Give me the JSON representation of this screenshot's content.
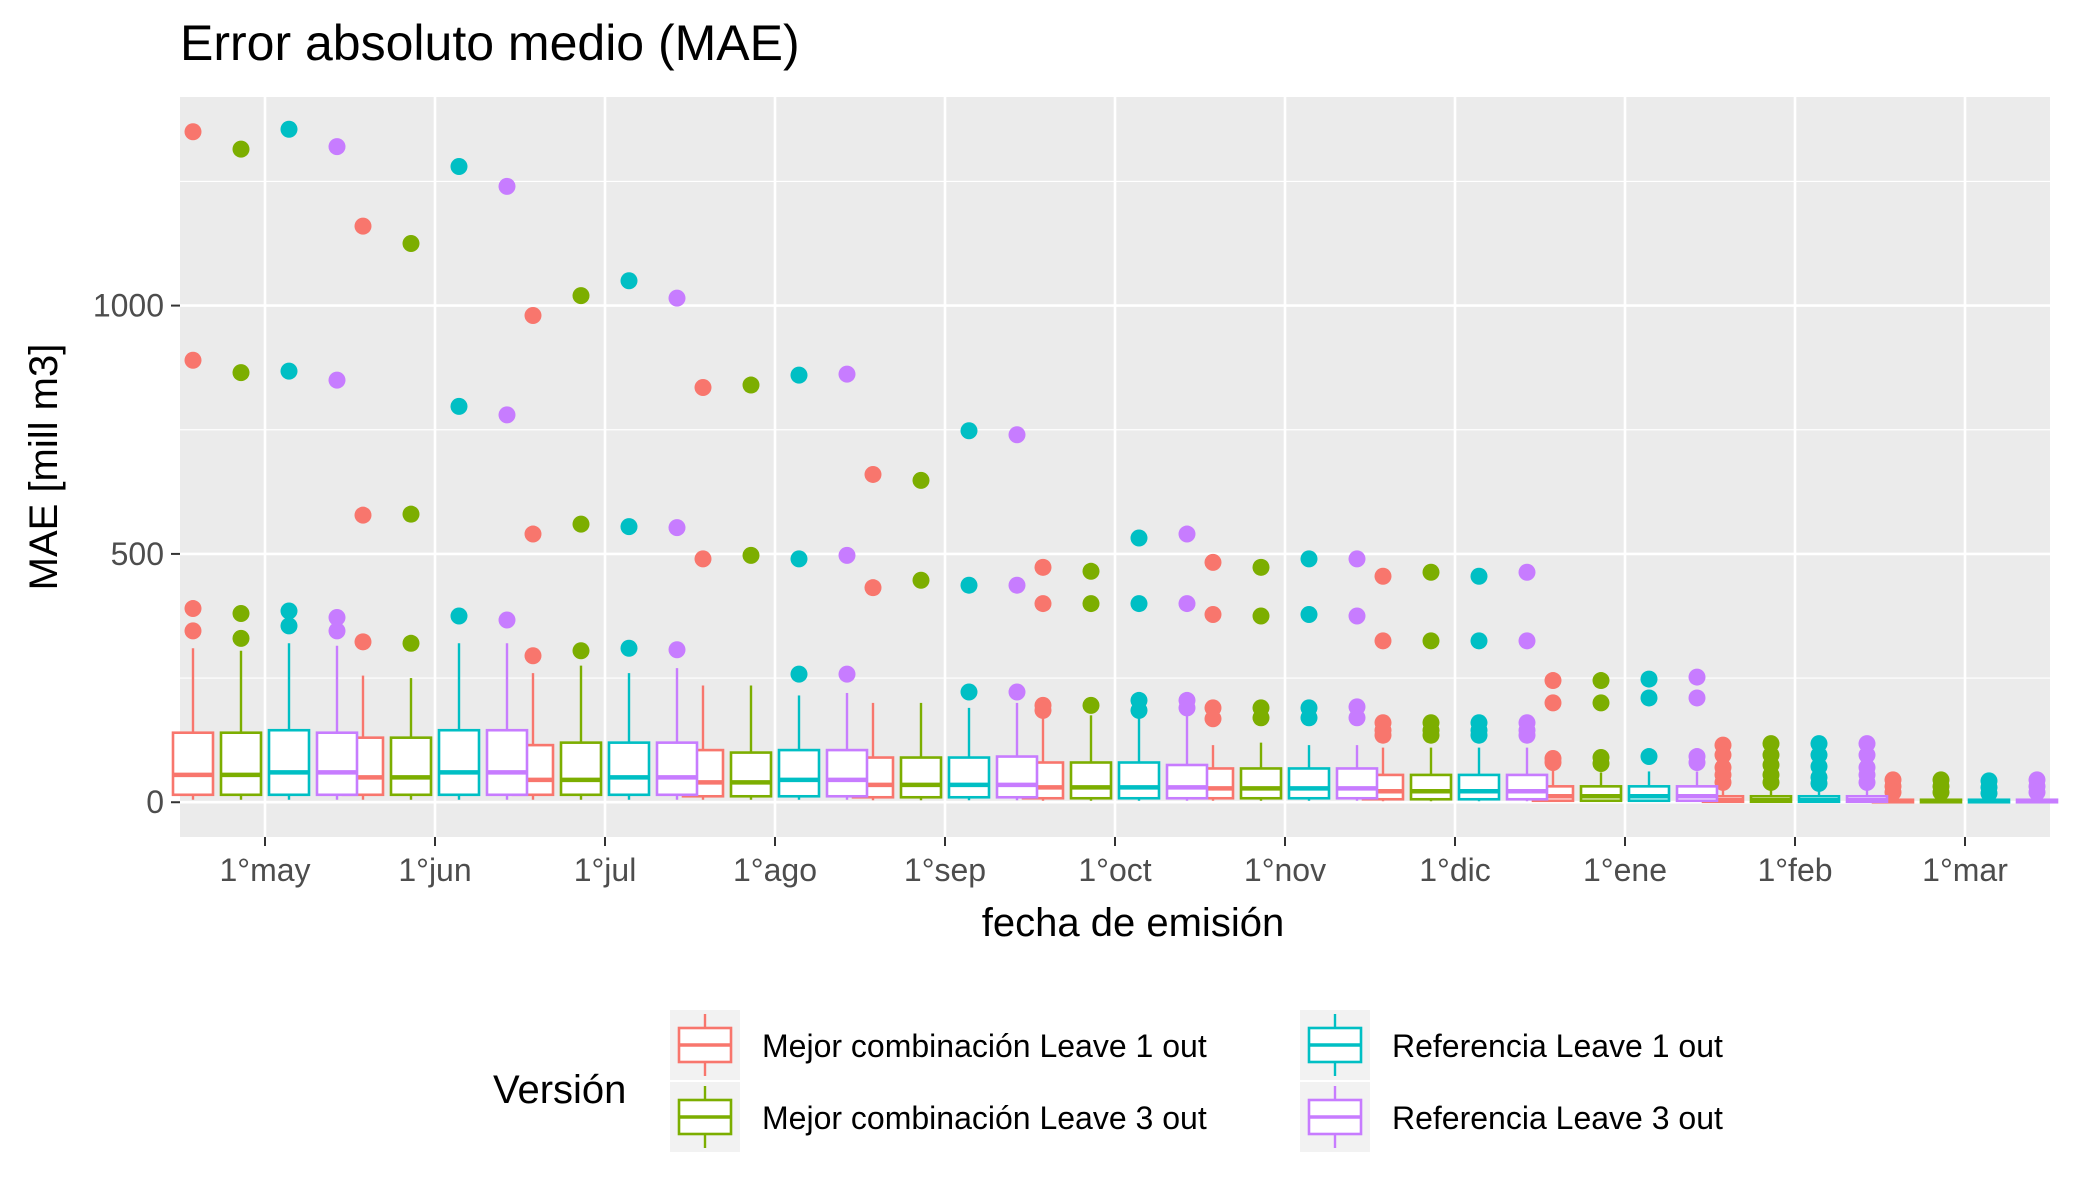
{
  "chart_data": {
    "type": "box",
    "title": "Error absoluto medio (MAE)",
    "xlabel": "fecha de emisión",
    "ylabel": "MAE [mill m3]",
    "ylim": [
      -70,
      1420
    ],
    "yticks": [
      0,
      500,
      1000
    ],
    "grid": true,
    "legend_position": "bottom",
    "legend_title": "Versión",
    "categories": [
      "1°may",
      "1°jun",
      "1°jul",
      "1°ago",
      "1°sep",
      "1°oct",
      "1°nov",
      "1°dic",
      "1°ene",
      "1°feb",
      "1°mar"
    ],
    "series": [
      {
        "name": "Mejor combinación Leave 1 out",
        "color": "#F8766D",
        "boxes": [
          {
            "lo": 5,
            "q1": 15,
            "med": 55,
            "q3": 140,
            "hi": 310,
            "outliers": [
              1350,
              890,
              390,
              345
            ]
          },
          {
            "lo": 5,
            "q1": 15,
            "med": 50,
            "q3": 130,
            "hi": 255,
            "outliers": [
              1160,
              578,
              323
            ]
          },
          {
            "lo": 5,
            "q1": 15,
            "med": 45,
            "q3": 115,
            "hi": 260,
            "outliers": [
              980,
              540,
              295
            ]
          },
          {
            "lo": 5,
            "q1": 12,
            "med": 40,
            "q3": 105,
            "hi": 235,
            "outliers": [
              835,
              490
            ]
          },
          {
            "lo": 4,
            "q1": 10,
            "med": 35,
            "q3": 90,
            "hi": 200,
            "outliers": [
              660,
              432
            ]
          },
          {
            "lo": 3,
            "q1": 8,
            "med": 30,
            "q3": 80,
            "hi": 175,
            "outliers": [
              473,
              400,
              195,
              185
            ]
          },
          {
            "lo": 3,
            "q1": 8,
            "med": 28,
            "q3": 68,
            "hi": 115,
            "outliers": [
              483,
              378,
              190,
              168
            ]
          },
          {
            "lo": 2,
            "q1": 6,
            "med": 22,
            "q3": 55,
            "hi": 110,
            "outliers": [
              455,
              325,
              160,
              145,
              135
            ]
          },
          {
            "lo": 1,
            "q1": 3,
            "med": 12,
            "q3": 32,
            "hi": 65,
            "outliers": [
              245,
              200,
              88,
              80
            ]
          },
          {
            "lo": 0,
            "q1": 1,
            "med": 4,
            "q3": 12,
            "hi": 25,
            "outliers": [
              115,
              95,
              70,
              55,
              40
            ]
          },
          {
            "lo": 0,
            "q1": 0,
            "med": 2,
            "q3": 5,
            "hi": 10,
            "outliers": [
              45,
              32,
              20
            ]
          }
        ]
      },
      {
        "name": "Mejor combinación Leave 3 out",
        "color": "#7CAE00",
        "boxes": [
          {
            "lo": 5,
            "q1": 15,
            "med": 55,
            "q3": 140,
            "hi": 305,
            "outliers": [
              1315,
              865,
              380,
              330
            ]
          },
          {
            "lo": 5,
            "q1": 15,
            "med": 50,
            "q3": 130,
            "hi": 250,
            "outliers": [
              1125,
              580,
              320
            ]
          },
          {
            "lo": 5,
            "q1": 15,
            "med": 45,
            "q3": 120,
            "hi": 275,
            "outliers": [
              1020,
              560,
              305
            ]
          },
          {
            "lo": 5,
            "q1": 12,
            "med": 40,
            "q3": 100,
            "hi": 235,
            "outliers": [
              840,
              497
            ]
          },
          {
            "lo": 4,
            "q1": 10,
            "med": 35,
            "q3": 90,
            "hi": 200,
            "outliers": [
              648,
              447
            ]
          },
          {
            "lo": 3,
            "q1": 8,
            "med": 30,
            "q3": 80,
            "hi": 175,
            "outliers": [
              465,
              400,
              195
            ]
          },
          {
            "lo": 3,
            "q1": 8,
            "med": 28,
            "q3": 68,
            "hi": 120,
            "outliers": [
              473,
              375,
              190,
              170
            ]
          },
          {
            "lo": 2,
            "q1": 6,
            "med": 22,
            "q3": 55,
            "hi": 110,
            "outliers": [
              463,
              325,
              160,
              145,
              135
            ]
          },
          {
            "lo": 1,
            "q1": 3,
            "med": 12,
            "q3": 32,
            "hi": 60,
            "outliers": [
              245,
              200,
              90,
              78
            ]
          },
          {
            "lo": 0,
            "q1": 1,
            "med": 4,
            "q3": 12,
            "hi": 25,
            "outliers": [
              118,
              95,
              75,
              55,
              40
            ]
          },
          {
            "lo": 0,
            "q1": 0,
            "med": 2,
            "q3": 5,
            "hi": 10,
            "outliers": [
              45,
              32,
              20
            ]
          }
        ]
      },
      {
        "name": "Referencia Leave 1 out",
        "color": "#00BFC4",
        "boxes": [
          {
            "lo": 5,
            "q1": 15,
            "med": 60,
            "q3": 145,
            "hi": 320,
            "outliers": [
              1355,
              868,
              385,
              355
            ]
          },
          {
            "lo": 5,
            "q1": 15,
            "med": 60,
            "q3": 145,
            "hi": 320,
            "outliers": [
              1280,
              797,
              375
            ]
          },
          {
            "lo": 5,
            "q1": 15,
            "med": 50,
            "q3": 120,
            "hi": 260,
            "outliers": [
              1050,
              555,
              310
            ]
          },
          {
            "lo": 5,
            "q1": 12,
            "med": 45,
            "q3": 105,
            "hi": 215,
            "outliers": [
              860,
              490,
              258
            ]
          },
          {
            "lo": 4,
            "q1": 10,
            "med": 35,
            "q3": 90,
            "hi": 190,
            "outliers": [
              748,
              437,
              222
            ]
          },
          {
            "lo": 3,
            "q1": 8,
            "med": 30,
            "q3": 80,
            "hi": 175,
            "outliers": [
              532,
              400,
              205,
              185
            ]
          },
          {
            "lo": 3,
            "q1": 8,
            "med": 28,
            "q3": 68,
            "hi": 115,
            "outliers": [
              490,
              378,
              190,
              170
            ]
          },
          {
            "lo": 2,
            "q1": 6,
            "med": 22,
            "q3": 55,
            "hi": 110,
            "outliers": [
              455,
              325,
              160,
              145,
              135
            ]
          },
          {
            "lo": 1,
            "q1": 3,
            "med": 12,
            "q3": 32,
            "hi": 62,
            "outliers": [
              248,
              210,
              92
            ]
          },
          {
            "lo": 0,
            "q1": 1,
            "med": 4,
            "q3": 12,
            "hi": 25,
            "outliers": [
              118,
              95,
              72,
              50,
              38
            ]
          },
          {
            "lo": 0,
            "q1": 0,
            "med": 2,
            "q3": 5,
            "hi": 10,
            "outliers": [
              43,
              30,
              18
            ]
          }
        ]
      },
      {
        "name": "Referencia Leave 3 out",
        "color": "#C77CFF",
        "boxes": [
          {
            "lo": 5,
            "q1": 15,
            "med": 60,
            "q3": 140,
            "hi": 315,
            "outliers": [
              1320,
              850,
              372,
              345
            ]
          },
          {
            "lo": 5,
            "q1": 15,
            "med": 60,
            "q3": 145,
            "hi": 320,
            "outliers": [
              1240,
              780,
              367
            ]
          },
          {
            "lo": 5,
            "q1": 15,
            "med": 50,
            "q3": 120,
            "hi": 270,
            "outliers": [
              1015,
              553,
              307
            ]
          },
          {
            "lo": 5,
            "q1": 12,
            "med": 45,
            "q3": 105,
            "hi": 220,
            "outliers": [
              862,
              497,
              258
            ]
          },
          {
            "lo": 4,
            "q1": 10,
            "med": 35,
            "q3": 92,
            "hi": 200,
            "outliers": [
              740,
              437,
              222
            ]
          },
          {
            "lo": 3,
            "q1": 8,
            "med": 30,
            "q3": 75,
            "hi": 175,
            "outliers": [
              540,
              400,
              205,
              190
            ]
          },
          {
            "lo": 3,
            "q1": 8,
            "med": 28,
            "q3": 68,
            "hi": 115,
            "outliers": [
              490,
              375,
              192,
              170
            ]
          },
          {
            "lo": 2,
            "q1": 6,
            "med": 22,
            "q3": 55,
            "hi": 110,
            "outliers": [
              463,
              325,
              160,
              145,
              135
            ]
          },
          {
            "lo": 1,
            "q1": 3,
            "med": 12,
            "q3": 32,
            "hi": 62,
            "outliers": [
              252,
              210,
              92,
              80
            ]
          },
          {
            "lo": 0,
            "q1": 1,
            "med": 4,
            "q3": 12,
            "hi": 25,
            "outliers": [
              118,
              95,
              70,
              55,
              40
            ]
          },
          {
            "lo": 0,
            "q1": 0,
            "med": 2,
            "q3": 5,
            "hi": 10,
            "outliers": [
              45,
              32,
              20
            ]
          }
        ]
      }
    ]
  }
}
